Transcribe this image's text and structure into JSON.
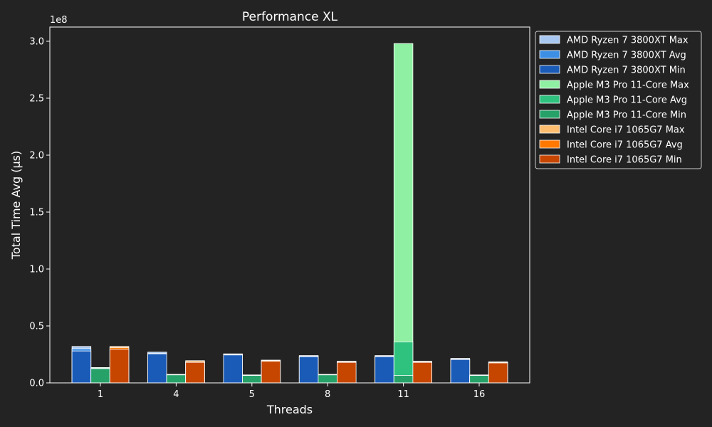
{
  "chart_data": {
    "type": "bar",
    "title": "Performance XL",
    "xlabel": "Threads",
    "ylabel": "Total Time Avg (µs)",
    "offset_label": "1e8",
    "scale": 100000000,
    "categories": [
      "1",
      "4",
      "5",
      "8",
      "11",
      "16"
    ],
    "ylim": [
      0,
      3.125
    ],
    "yticks": [
      0.0,
      0.5,
      1.0,
      1.5,
      2.0,
      2.5,
      3.0
    ],
    "ytick_labels": [
      "0.0",
      "0.5",
      "1.0",
      "1.5",
      "2.0",
      "2.5",
      "3.0"
    ],
    "grid": false,
    "legend_position": "outside-right",
    "groups": [
      {
        "name": "AMD Ryzen 7 3800XT",
        "max": [
          0.32,
          0.27,
          0.255,
          0.24,
          0.24,
          0.215
        ],
        "avg": [
          0.3,
          0.26,
          0.25,
          0.235,
          0.235,
          0.21
        ],
        "min": [
          0.28,
          0.255,
          0.245,
          0.23,
          0.23,
          0.205
        ]
      },
      {
        "name": "Apple M3 Pro 11-Core",
        "max": [
          0.135,
          0.075,
          0.07,
          0.075,
          2.98,
          0.07
        ],
        "avg": [
          0.13,
          0.072,
          0.067,
          0.072,
          0.36,
          0.067
        ],
        "min": [
          0.125,
          0.07,
          0.065,
          0.07,
          0.065,
          0.065
        ]
      },
      {
        "name": "Intel Core i7 1065G7",
        "max": [
          0.32,
          0.195,
          0.2,
          0.19,
          0.19,
          0.185
        ],
        "avg": [
          0.31,
          0.19,
          0.195,
          0.185,
          0.185,
          0.18
        ],
        "min": [
          0.295,
          0.18,
          0.19,
          0.18,
          0.18,
          0.175
        ]
      }
    ],
    "legend": [
      {
        "label": "AMD Ryzen 7 3800XT Max",
        "color": "#a8c8f2"
      },
      {
        "label": "AMD Ryzen 7 3800XT Avg",
        "color": "#3d8fe6"
      },
      {
        "label": "AMD Ryzen 7 3800XT Min",
        "color": "#1a5bb8"
      },
      {
        "label": "Apple M3 Pro 11-Core Max",
        "color": "#8ff0a4"
      },
      {
        "label": "Apple M3 Pro 11-Core Avg",
        "color": "#2ec27e"
      },
      {
        "label": "Apple M3 Pro 11-Core Min",
        "color": "#26a269"
      },
      {
        "label": "Intel Core i7 1065G7 Max",
        "color": "#ffbe6f"
      },
      {
        "label": "Intel Core i7 1065G7 Avg",
        "color": "#ff7800"
      },
      {
        "label": "Intel Core i7 1065G7 Min",
        "color": "#c64600"
      }
    ],
    "colors": {
      "background": "#232323",
      "axes": "#ffffff",
      "bar_edge": "#ffffff"
    }
  }
}
